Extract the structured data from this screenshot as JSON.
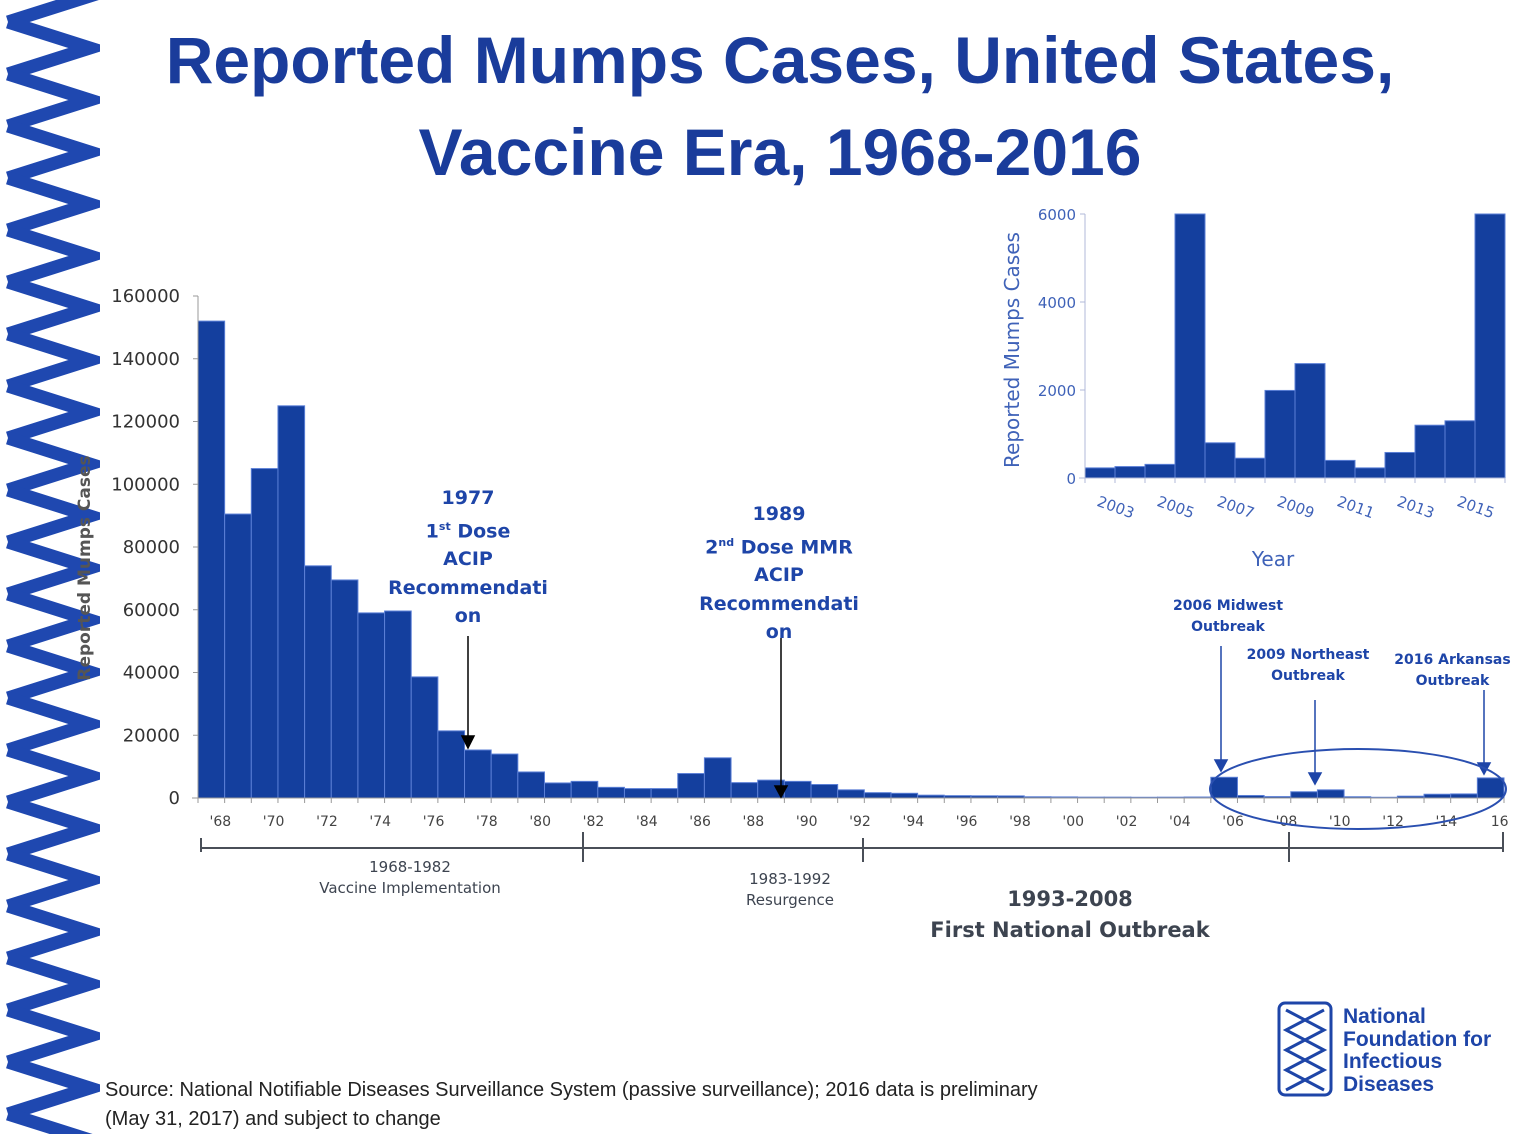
{
  "title_line1": "Reported Mumps Cases, United States,",
  "title_line2": "Vaccine Era, 1968-2016",
  "colors": {
    "bar": "#143f9e",
    "bar_edge": "#5b7fd6",
    "text_blue": "#1e45a8",
    "axis_gray": "#888888"
  },
  "chart_data": [
    {
      "type": "bar",
      "ylabel": "Reported Mumps Cases",
      "xlabel": "",
      "ylim": [
        0,
        160000
      ],
      "yticks": [
        0,
        20000,
        40000,
        60000,
        80000,
        100000,
        120000,
        140000,
        160000
      ],
      "categories": [
        1968,
        1969,
        1970,
        1971,
        1972,
        1973,
        1974,
        1975,
        1976,
        1977,
        1978,
        1979,
        1980,
        1981,
        1982,
        1983,
        1984,
        1985,
        1986,
        1987,
        1988,
        1989,
        1990,
        1991,
        1992,
        1993,
        1994,
        1995,
        1996,
        1997,
        1998,
        1999,
        2000,
        2001,
        2002,
        2003,
        2004,
        2005,
        2006,
        2007,
        2008,
        2009,
        2010,
        2011,
        2012,
        2013,
        2014,
        2015,
        2016
      ],
      "tick_labels": [
        "'68",
        "'70",
        "'72",
        "'74",
        "'76",
        "'78",
        "'80",
        "'82",
        "'84",
        "'86",
        "'88",
        "'90",
        "'92",
        "'94",
        "'96",
        "'98",
        "'00",
        "'02",
        "'04",
        "'06",
        "'08",
        "'10",
        "'12",
        "'14",
        "16"
      ],
      "values": [
        152000,
        90500,
        105000,
        125000,
        74000,
        69500,
        59000,
        59600,
        38600,
        21400,
        15300,
        14000,
        8300,
        4800,
        5300,
        3400,
        3000,
        3000,
        7800,
        12800,
        4900,
        5700,
        5300,
        4300,
        2600,
        1700,
        1500,
        900,
        750,
        700,
        670,
        390,
        340,
        270,
        270,
        230,
        260,
        310,
        6600,
        800,
        450,
        1990,
        2600,
        400,
        230,
        580,
        1200,
        1300,
        6400
      ],
      "grid": false
    },
    {
      "type": "bar",
      "ylabel": "Reported Mumps Cases",
      "xlabel": "Year",
      "ylim": [
        0,
        6000
      ],
      "yticks": [
        0,
        2000,
        4000,
        6000
      ],
      "categories": [
        2003,
        2004,
        2005,
        2006,
        2007,
        2008,
        2009,
        2010,
        2011,
        2012,
        2013,
        2014,
        2015,
        2016
      ],
      "tick_labels": [
        "2003",
        "2005",
        "2007",
        "2009",
        "2011",
        "2013",
        "2015"
      ],
      "values": [
        230,
        260,
        310,
        6600,
        800,
        450,
        1990,
        2600,
        400,
        230,
        580,
        1200,
        1300,
        6400
      ],
      "grid": false
    }
  ],
  "annotations": {
    "a1977": {
      "year": "1977",
      "line2": "1",
      "sup": "st",
      "line2b": " Dose",
      "line3": "ACIP",
      "line4": "Recommendati",
      "line5": "on"
    },
    "a1989": {
      "year": "1989",
      "line2": "2",
      "sup": "nd",
      "line2b": " Dose MMR",
      "line3": "ACIP",
      "line4": "Recommendati",
      "line5": "on"
    },
    "midwest": {
      "line1": "2006 Midwest",
      "line2": "Outbreak"
    },
    "northeast": {
      "line1": "2009 Northeast",
      "line2": "Outbreak"
    },
    "arkansas": {
      "line1": "2016 Arkansas",
      "line2": "Outbreak"
    }
  },
  "periods": [
    {
      "years": "1968-1982",
      "label": "Vaccine Implementation"
    },
    {
      "years": "1983-1992",
      "label": "Resurgence"
    },
    {
      "years": "1993-2008",
      "label": "First National Outbreak"
    }
  ],
  "source_line1": "Source: National Notifiable Diseases Surveillance System (passive surveillance); 2016 data is preliminary",
  "source_line2": "(May 31, 2017) and subject to change",
  "logo": {
    "line1": "National",
    "line2": "Foundation for",
    "line3": "Infectious",
    "line4": "Diseases"
  }
}
